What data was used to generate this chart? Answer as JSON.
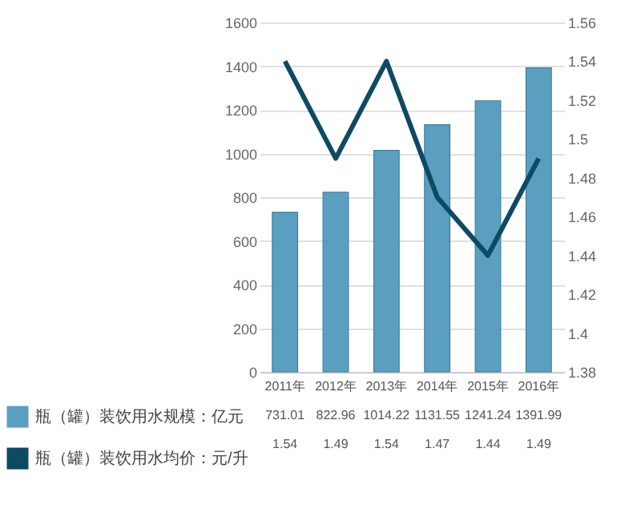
{
  "chart_data": {
    "type": "bar",
    "categories": [
      "2011年",
      "2012年",
      "2013年",
      "2014年",
      "2015年",
      "2016年"
    ],
    "series": [
      {
        "name": "瓶（罐）装饮用水规模：亿元",
        "color": "#5a9fc0",
        "values": [
          731.01,
          822.96,
          1014.22,
          1131.55,
          1241.24,
          1391.99
        ]
      },
      {
        "name": "瓶（罐）装饮用水均价：元/升",
        "type": "line",
        "axis": "y2",
        "color": "#0d4a63",
        "values": [
          1.54,
          1.49,
          1.54,
          1.47,
          1.44,
          1.49
        ]
      }
    ],
    "ylim": [
      0,
      1600
    ],
    "yticks": [
      0,
      200,
      400,
      600,
      800,
      1000,
      1200,
      1400,
      1600
    ],
    "y2lim": [
      1.38,
      1.56
    ],
    "y2ticks": [
      1.38,
      1.4,
      1.42,
      1.44,
      1.46,
      1.48,
      1.5,
      1.52,
      1.54,
      1.56
    ],
    "grid": "y",
    "legend": "bottom",
    "data_labels": true
  }
}
